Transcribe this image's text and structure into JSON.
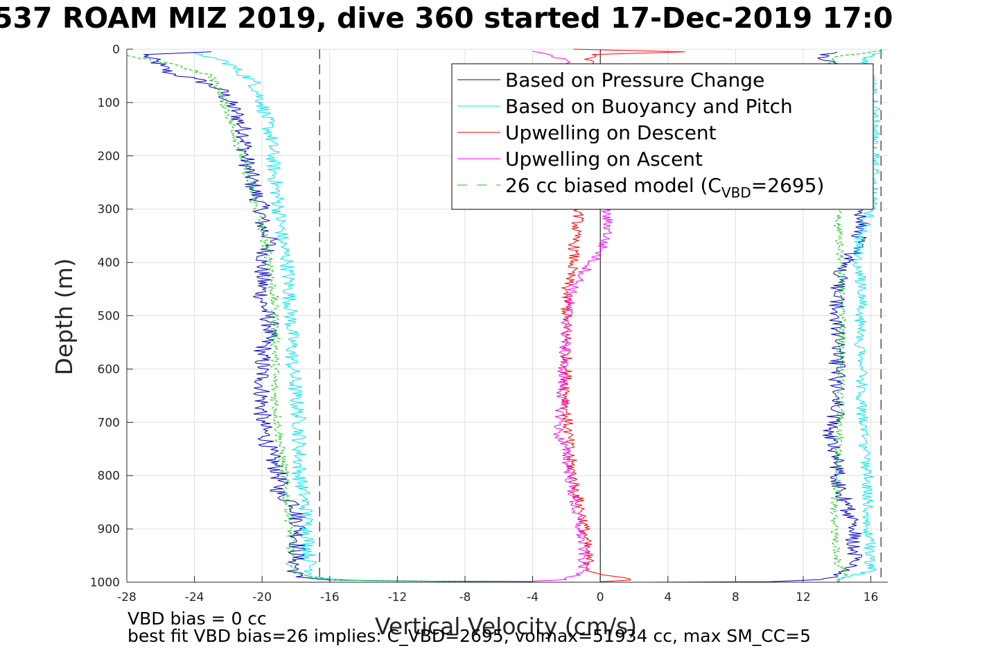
{
  "title": "537 ROAM MIZ 2019, dive 360 started 17-Dec-2019 17:0",
  "footnotes": {
    "vbd_bias": "VBD bias = 0 cc",
    "best_fit": "best fit VBD bias=26 implies: C_VBD=2695, volmax=51934 cc, max SM_CC=5"
  },
  "colors": {
    "pressure": "#0000cc",
    "buoyancy": "#00e5ee",
    "upwelling_descent": "#ff0000",
    "upwelling_ascent": "#ff00ff",
    "model": "#00cc00",
    "grid": "#dedede",
    "axes": "#262626"
  },
  "chart_data": {
    "type": "line",
    "xlabel": "Vertical Velocity (cm/s)",
    "ylabel": "Depth (m)",
    "xlim": [
      -28,
      17
    ],
    "ylim": [
      1000,
      0
    ],
    "y_reversed": true,
    "xticks": [
      -28,
      -24,
      -20,
      -16,
      -12,
      -8,
      -4,
      0,
      4,
      8,
      12,
      16
    ],
    "yticks": [
      0,
      100,
      200,
      300,
      400,
      500,
      600,
      700,
      800,
      900,
      1000
    ],
    "grid": true,
    "legend_location": "top-right",
    "reference_lines": {
      "dashed_vertical": [
        -16.6,
        16.6
      ],
      "solid_vertical": [
        0
      ]
    },
    "legend": [
      {
        "label": "Based on Pressure Change",
        "key": "pressure",
        "style": "solid"
      },
      {
        "label": "Based on Buoyancy and Pitch",
        "key": "buoyancy",
        "style": "solid"
      },
      {
        "label": "Upwelling on Descent",
        "key": "upwelling_descent",
        "style": "solid"
      },
      {
        "label": "Upwelling on Ascent",
        "key": "upwelling_ascent",
        "style": "solid"
      },
      {
        "label_main": "26 cc biased model (C",
        "label_sub": "VBD",
        "label_end": "=2695)",
        "key": "model",
        "style": "dashed"
      }
    ],
    "series": [
      {
        "key": "pressure",
        "color": "#0000cc",
        "style": "solid",
        "jitter": 0.55,
        "points": [
          [
            -23,
            5
          ],
          [
            -27,
            10
          ],
          [
            -26,
            30
          ],
          [
            -25.5,
            45
          ],
          [
            -24,
            55
          ],
          [
            -22.5,
            75
          ],
          [
            -21.5,
            120
          ],
          [
            -21,
            160
          ],
          [
            -21,
            200
          ],
          [
            -20.5,
            260
          ],
          [
            -20,
            300
          ],
          [
            -20,
            330
          ],
          [
            -19.5,
            360
          ],
          [
            -20,
            400
          ],
          [
            -20,
            470
          ],
          [
            -19.5,
            520
          ],
          [
            -20,
            570
          ],
          [
            -20,
            620
          ],
          [
            -20,
            700
          ],
          [
            -19.5,
            760
          ],
          [
            -19,
            800
          ],
          [
            -19,
            840
          ],
          [
            -18,
            850
          ],
          [
            -17.8,
            900
          ],
          [
            -18,
            960
          ],
          [
            -18,
            990
          ],
          [
            -16,
            996
          ],
          [
            -10,
            998
          ],
          [
            -4,
            999
          ]
        ]
      },
      {
        "key": "pressure",
        "color": "#0000cc",
        "style": "solid",
        "jitter": 0.5,
        "points": [
          [
            3,
            1000
          ],
          [
            10,
            999
          ],
          [
            13,
            995
          ],
          [
            14,
            990
          ],
          [
            15,
            960
          ],
          [
            15,
            900
          ],
          [
            14.5,
            850
          ],
          [
            14,
            800
          ],
          [
            14,
            760
          ],
          [
            13.5,
            720
          ],
          [
            14,
            680
          ],
          [
            14,
            640
          ],
          [
            14,
            600
          ],
          [
            14,
            550
          ],
          [
            14,
            500
          ],
          [
            14,
            450
          ],
          [
            14.3,
            410
          ],
          [
            15,
            380
          ],
          [
            15.5,
            340
          ],
          [
            15.5,
            300
          ],
          [
            15.3,
            200
          ],
          [
            15.2,
            100
          ],
          [
            14,
            40
          ],
          [
            13,
            10
          ],
          [
            14,
            5
          ]
        ]
      },
      {
        "key": "buoyancy",
        "color": "#00e5ee",
        "style": "solid",
        "jitter": 0.45,
        "points": [
          [
            -24,
            8
          ],
          [
            -23,
            15
          ],
          [
            -22,
            25
          ],
          [
            -21.5,
            40
          ],
          [
            -20.5,
            60
          ],
          [
            -20,
            100
          ],
          [
            -19.5,
            160
          ],
          [
            -19.3,
            230
          ],
          [
            -19,
            300
          ],
          [
            -18.8,
            360
          ],
          [
            -18.5,
            400
          ],
          [
            -18.3,
            500
          ],
          [
            -18.2,
            600
          ],
          [
            -18,
            650
          ],
          [
            -17.8,
            700
          ],
          [
            -17.8,
            800
          ],
          [
            -17.5,
            840
          ],
          [
            -17.3,
            900
          ],
          [
            -17.2,
            960
          ],
          [
            -17,
            992
          ],
          [
            -14,
            997
          ],
          [
            -8,
            999
          ],
          [
            -4,
            1000
          ]
        ]
      },
      {
        "key": "buoyancy",
        "color": "#00e5ee",
        "style": "solid",
        "jitter": 0.35,
        "points": [
          [
            14,
            1000
          ],
          [
            14.5,
            990
          ],
          [
            16,
            980
          ],
          [
            15.8,
            900
          ],
          [
            15.8,
            800
          ],
          [
            15.5,
            700
          ],
          [
            15.4,
            600
          ],
          [
            15.4,
            500
          ],
          [
            15.5,
            450
          ],
          [
            15.2,
            400
          ],
          [
            15.4,
            350
          ],
          [
            16,
            300
          ],
          [
            16.2,
            200
          ],
          [
            16.2,
            150
          ],
          [
            16.3,
            120
          ],
          [
            16,
            60
          ],
          [
            15.5,
            20
          ],
          [
            16.5,
            5
          ]
        ]
      },
      {
        "key": "model",
        "color": "#00cc00",
        "style": "dashed",
        "jitter": 0.3,
        "points": [
          [
            -28,
            12
          ],
          [
            -25,
            30
          ],
          [
            -23,
            50
          ],
          [
            -22.5,
            80
          ],
          [
            -22,
            120
          ],
          [
            -21.5,
            170
          ],
          [
            -21,
            220
          ],
          [
            -20.5,
            280
          ],
          [
            -20,
            340
          ],
          [
            -19.5,
            400
          ],
          [
            -19.3,
            480
          ],
          [
            -19.2,
            560
          ],
          [
            -19.3,
            640
          ],
          [
            -19,
            720
          ],
          [
            -18.6,
            820
          ],
          [
            -18.3,
            900
          ],
          [
            -18.3,
            980
          ],
          [
            -16,
            996
          ],
          [
            -8,
            999
          ],
          [
            -4,
            1000
          ]
        ]
      },
      {
        "key": "model",
        "color": "#00cc00",
        "style": "dashed",
        "jitter": 0.25,
        "points": [
          [
            14,
            1000
          ],
          [
            14.5,
            990
          ],
          [
            14,
            960
          ],
          [
            13.8,
            880
          ],
          [
            14,
            800
          ],
          [
            14.2,
            700
          ],
          [
            14.2,
            600
          ],
          [
            14.3,
            500
          ],
          [
            14.2,
            400
          ],
          [
            14,
            300
          ],
          [
            13.6,
            200
          ],
          [
            13.5,
            100
          ],
          [
            13.6,
            40
          ],
          [
            13.8,
            15
          ],
          [
            16,
            5
          ],
          [
            16.8,
            2
          ]
        ]
      },
      {
        "key": "upwelling_descent",
        "color": "#ff0000",
        "style": "solid",
        "jitter": 0.35,
        "points": [
          [
            -1.6,
            0
          ],
          [
            5,
            5
          ],
          [
            -0.5,
            10
          ],
          [
            -0.8,
            30
          ],
          [
            -1.2,
            300
          ],
          [
            -1.5,
            350
          ],
          [
            -1.6,
            400
          ],
          [
            -2,
            450
          ],
          [
            -2,
            540
          ],
          [
            -2,
            600
          ],
          [
            -2,
            680
          ],
          [
            -1.8,
            760
          ],
          [
            -1.5,
            820
          ],
          [
            -1,
            880
          ],
          [
            -0.8,
            940
          ],
          [
            -0.6,
            980
          ],
          [
            1.8,
            996
          ],
          [
            0,
            999
          ]
        ]
      },
      {
        "key": "upwelling_ascent",
        "color": "#ff00ff",
        "style": "solid",
        "jitter": 0.35,
        "points": [
          [
            -4,
            4
          ],
          [
            -3,
            10
          ],
          [
            -2,
            20
          ],
          [
            -1.8,
            35
          ],
          [
            0.3,
            300
          ],
          [
            0.5,
            340
          ],
          [
            0,
            380
          ],
          [
            -1,
            420
          ],
          [
            -1.8,
            460
          ],
          [
            -2,
            520
          ],
          [
            -2.2,
            600
          ],
          [
            -2.3,
            680
          ],
          [
            -2.5,
            720
          ],
          [
            -2,
            760
          ],
          [
            -1.8,
            800
          ],
          [
            -1.5,
            860
          ],
          [
            -1.2,
            900
          ],
          [
            -1,
            940
          ],
          [
            -1,
            980
          ],
          [
            -2,
            995
          ],
          [
            -4,
            998
          ]
        ]
      }
    ]
  }
}
